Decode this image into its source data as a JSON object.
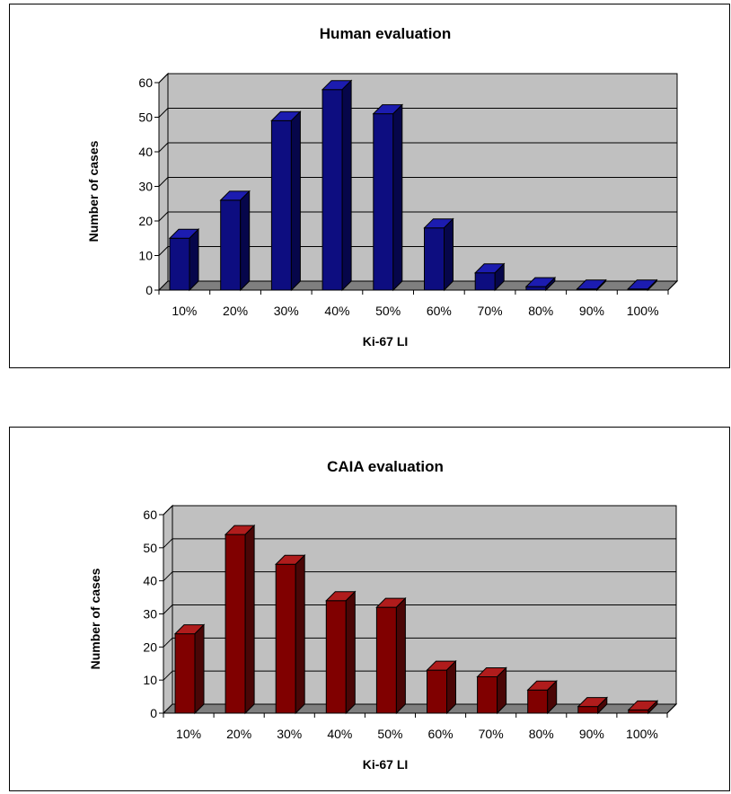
{
  "chart_data": [
    {
      "type": "bar",
      "title": "Human evaluation",
      "xlabel": "Ki-67 LI",
      "ylabel": "Number of cases",
      "categories": [
        "10%",
        "20%",
        "30%",
        "40%",
        "50%",
        "60%",
        "70%",
        "80%",
        "90%",
        "100%"
      ],
      "values": [
        15,
        26,
        49,
        58,
        51,
        18,
        5,
        1,
        0,
        0
      ],
      "yticks": [
        "0",
        "10",
        "20",
        "30",
        "40",
        "50",
        "60"
      ],
      "ylim": [
        0,
        60
      ],
      "grid": true,
      "legend": "none",
      "bar_color": "#0d0d80",
      "bar_top_color": "#1c1cb0",
      "bar_side_color": "#06064a",
      "wall_color": "#c0c0c0",
      "floor_color": "#7f7f7f"
    },
    {
      "type": "bar",
      "title": "CAIA evaluation",
      "xlabel": "Ki-67 LI",
      "ylabel": "Number of cases",
      "categories": [
        "10%",
        "20%",
        "30%",
        "40%",
        "50%",
        "60%",
        "70%",
        "80%",
        "90%",
        "100%"
      ],
      "values": [
        24,
        54,
        45,
        34,
        32,
        13,
        11,
        7,
        2,
        1
      ],
      "yticks": [
        "0",
        "10",
        "20",
        "30",
        "40",
        "50",
        "60"
      ],
      "ylim": [
        0,
        60
      ],
      "grid": true,
      "legend": "none",
      "bar_color": "#800000",
      "bar_top_color": "#b01c1c",
      "bar_side_color": "#4a0606",
      "wall_color": "#c0c0c0",
      "floor_color": "#7f7f7f"
    }
  ]
}
